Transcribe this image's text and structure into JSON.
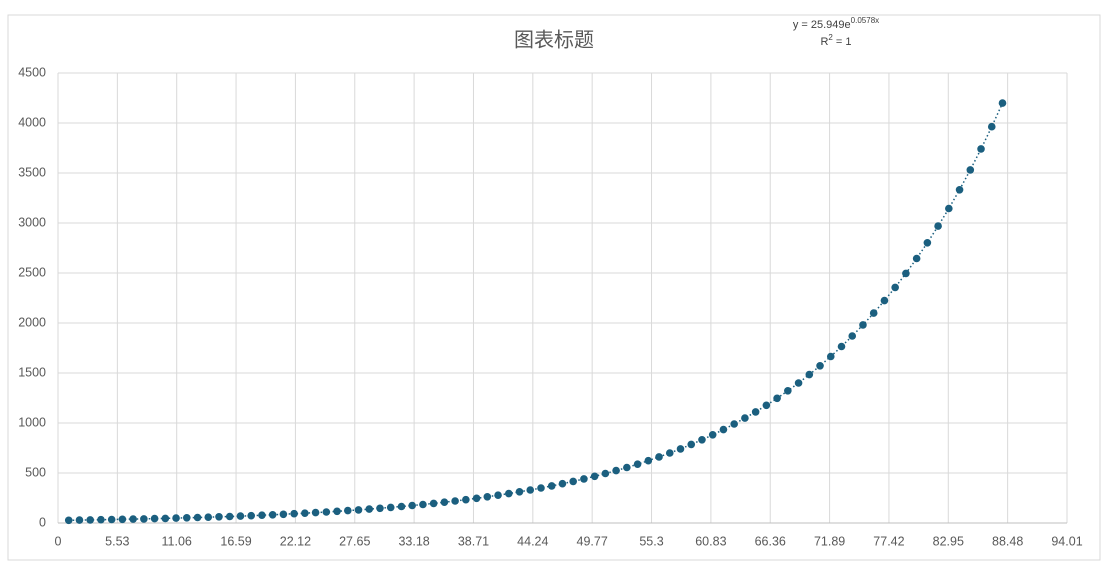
{
  "chart_data": {
    "type": "scatter",
    "title": "图表标题",
    "trendline": {
      "equation": "y = 25.949e",
      "exponent": "0.0578x",
      "r_label": "R",
      "r_power": "2",
      "r_value": " = 1"
    },
    "xlim": [
      0,
      94.01
    ],
    "ylim": [
      0,
      4500
    ],
    "xticks": [
      0,
      5.53,
      11.06,
      16.59,
      22.12,
      27.65,
      33.18,
      38.71,
      44.24,
      49.77,
      55.3,
      60.83,
      66.36,
      71.89,
      77.42,
      82.95,
      88.48,
      94.01
    ],
    "yticks": [
      0,
      500,
      1000,
      1500,
      2000,
      2500,
      3000,
      3500,
      4000,
      4500
    ],
    "grid": true,
    "series": [
      {
        "color": "#1b5f7f",
        "x": [
          1,
          2,
          3,
          4,
          5,
          6,
          7,
          8,
          9,
          10,
          11,
          12,
          13,
          14,
          15,
          16,
          17,
          18,
          19,
          20,
          21,
          22,
          23,
          24,
          25,
          26,
          27,
          28,
          29,
          30,
          31,
          32,
          33,
          34,
          35,
          36,
          37,
          38,
          39,
          40,
          41,
          42,
          43,
          44,
          45,
          46,
          47,
          48,
          49,
          50,
          51,
          52,
          53,
          54,
          55,
          56,
          57,
          58,
          59,
          60,
          61,
          62,
          63,
          64,
          65,
          66,
          67,
          68,
          69,
          70,
          71,
          72,
          73,
          74,
          75,
          76,
          77,
          78,
          79,
          80,
          81,
          82,
          83,
          84,
          85,
          86,
          87,
          88
        ],
        "values": [
          27,
          29,
          31,
          33,
          35,
          37,
          39,
          41,
          44,
          46,
          49,
          52,
          55,
          58,
          62,
          65,
          69,
          73,
          78,
          82,
          87,
          93,
          98,
          104,
          110,
          117,
          124,
          131,
          139,
          147,
          156,
          165,
          175,
          185,
          196,
          208,
          220,
          233,
          247,
          262,
          278,
          294,
          312,
          330,
          350,
          371,
          393,
          416,
          441,
          467,
          495,
          524,
          555,
          588,
          623,
          661,
          700,
          741,
          786,
          832,
          882,
          934,
          990,
          1049,
          1111,
          1177,
          1247,
          1322,
          1400,
          1484,
          1572,
          1665,
          1765,
          1870,
          1981,
          2099,
          2224,
          2356,
          2496,
          2645,
          2802,
          2969,
          3145,
          3332,
          3531,
          3741,
          3963,
          4199
        ]
      }
    ]
  }
}
